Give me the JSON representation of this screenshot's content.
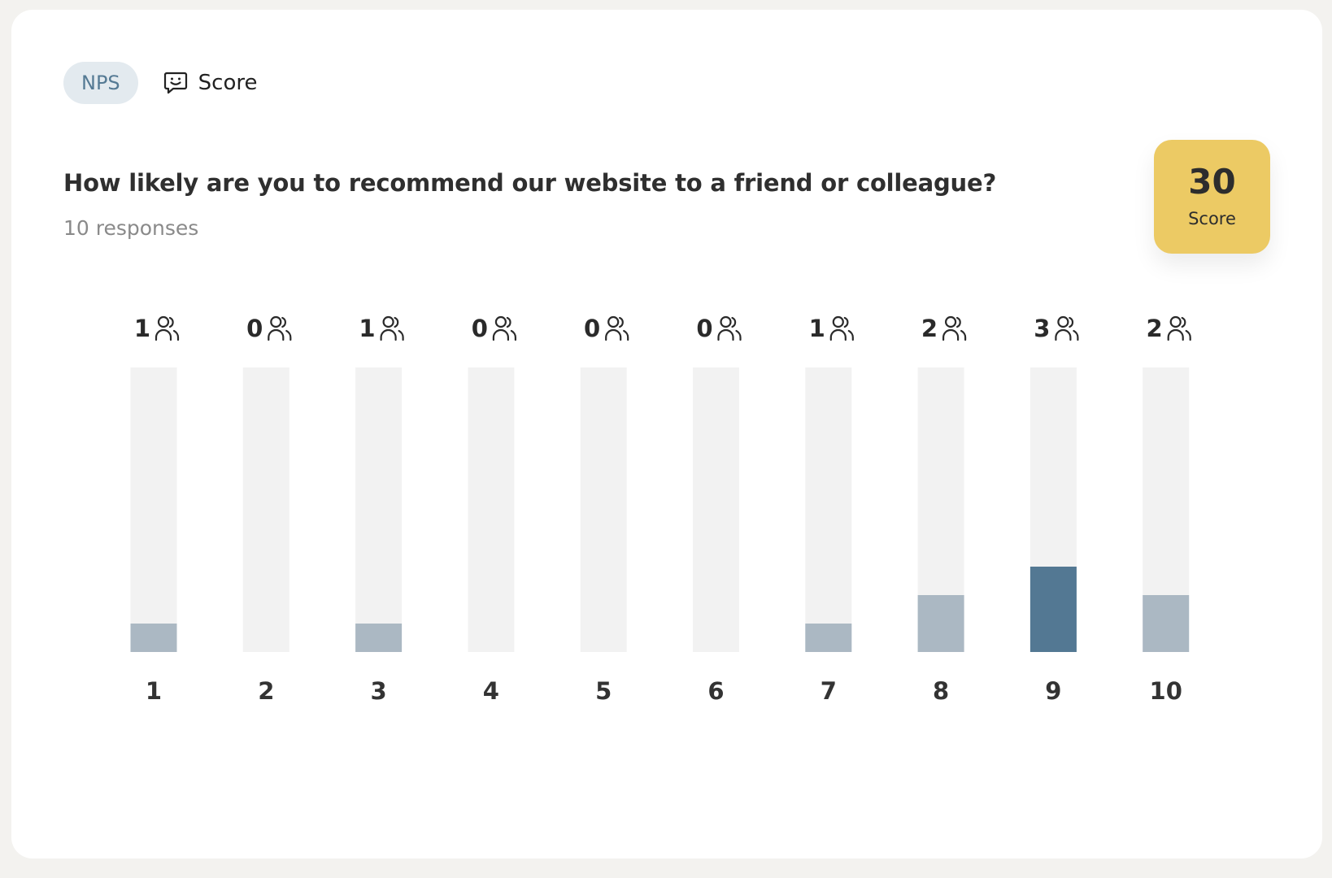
{
  "header": {
    "badge_label": "NPS",
    "type_label": "Score",
    "type_icon": "chat-smile-icon"
  },
  "question": {
    "title": "How likely are you to recommend our website to a friend or colleague?",
    "responses_text": "10 responses"
  },
  "score_box": {
    "value": "30",
    "label": "Score",
    "color": "#ecca64"
  },
  "chart_data": {
    "type": "bar",
    "categories": [
      "1",
      "2",
      "3",
      "4",
      "5",
      "6",
      "7",
      "8",
      "9",
      "10"
    ],
    "values": [
      1,
      0,
      1,
      0,
      0,
      0,
      1,
      2,
      3,
      2
    ],
    "count_icon": "users-icon",
    "ylim": [
      0,
      10
    ],
    "colors": {
      "track": "#f2f2f2",
      "bar": "#abb8c3",
      "highlight": "#537893"
    },
    "highlight_category": "9"
  }
}
